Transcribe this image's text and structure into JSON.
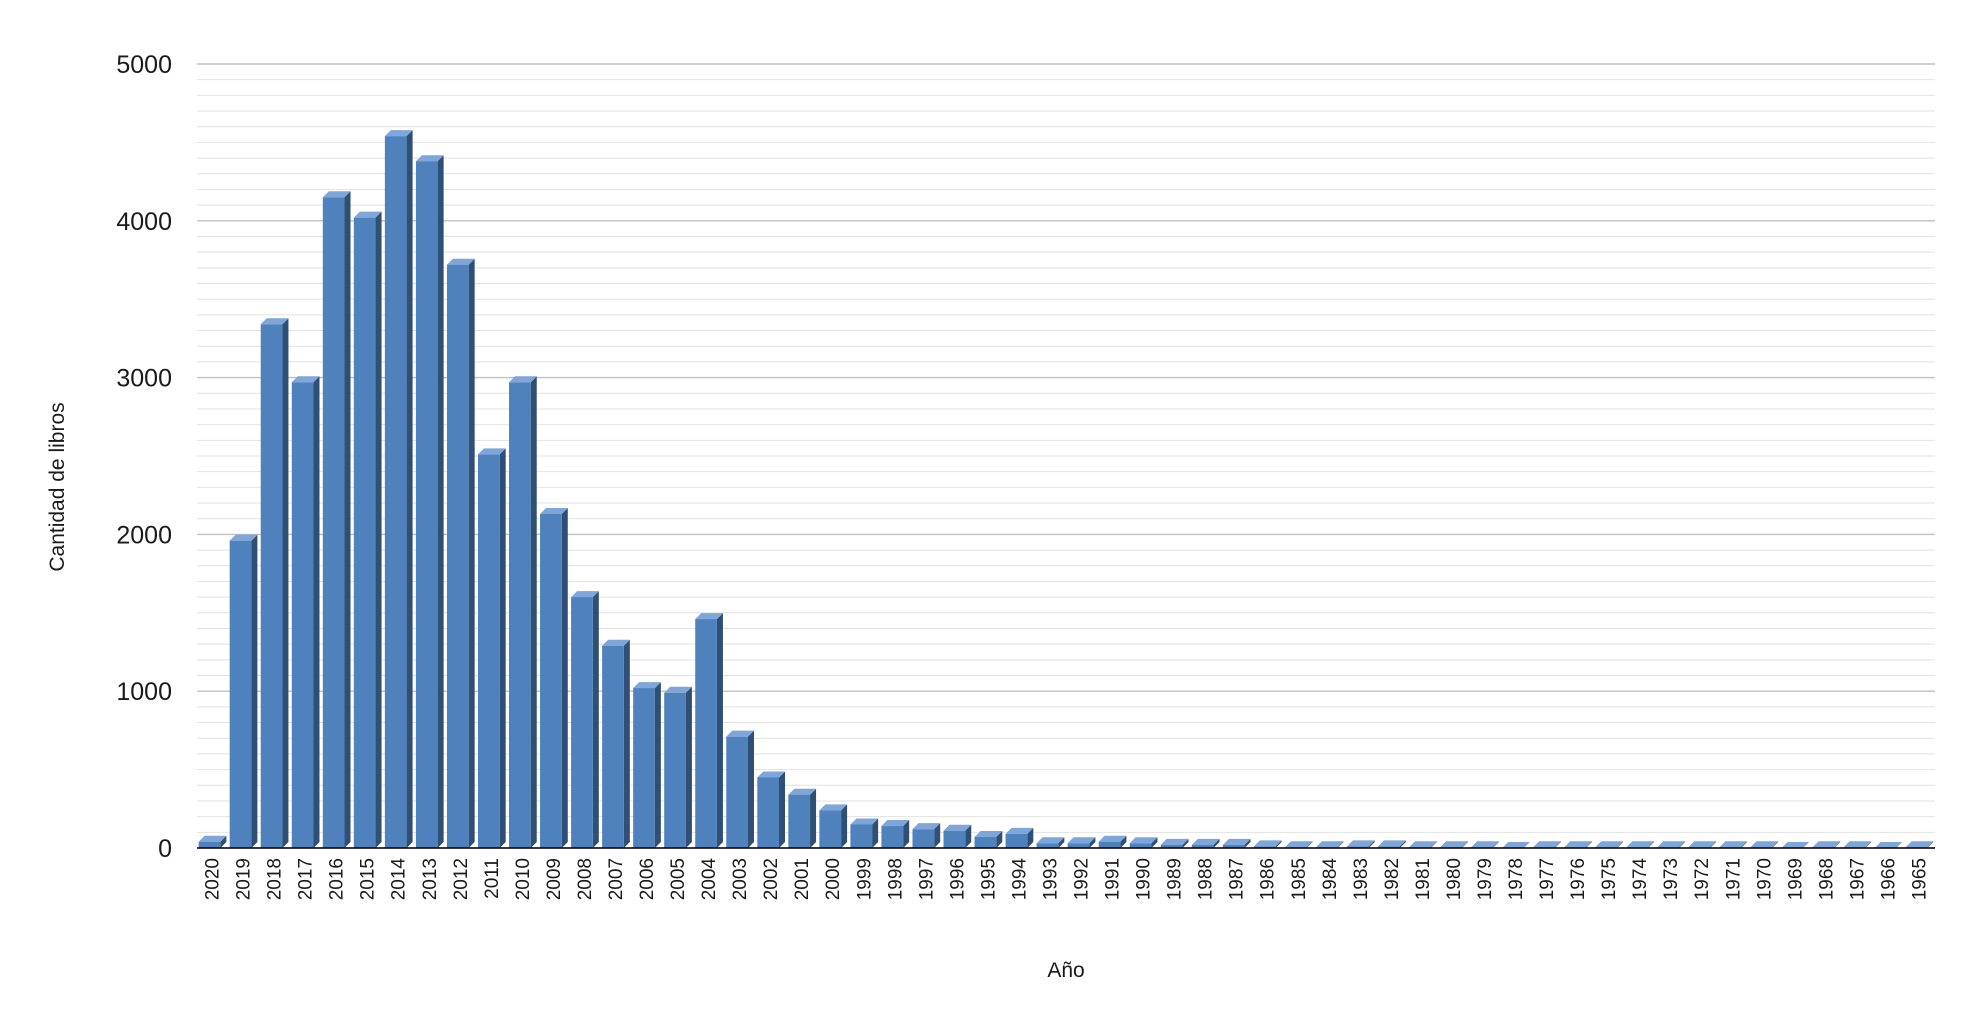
{
  "chart_data": {
    "type": "bar",
    "style": "3d-column",
    "title": "",
    "xlabel": "Año",
    "ylabel": "Cantidad de libros",
    "ylim": [
      0,
      5000
    ],
    "yticks": [
      "0",
      "1000",
      "2000",
      "3000",
      "4000",
      "5000"
    ],
    "grid": true,
    "legend": "none",
    "colors": {
      "bar_front": "#4f81bd",
      "bar_side": "#2f4f75",
      "bar_top": "#7ea6d8",
      "grid_major": "#c0c0c0",
      "grid_minor": "#e2e2e2",
      "baseline": "#000000"
    },
    "categories": [
      "2020",
      "2019",
      "2018",
      "2017",
      "2016",
      "2015",
      "2014",
      "2013",
      "2012",
      "2011",
      "2010",
      "2009",
      "2008",
      "2007",
      "2006",
      "2005",
      "2004",
      "2003",
      "2002",
      "2001",
      "2000",
      "1999",
      "1998",
      "1997",
      "1996",
      "1995",
      "1994",
      "1993",
      "1992",
      "1991",
      "1990",
      "1989",
      "1988",
      "1987",
      "1986",
      "1985",
      "1984",
      "1983",
      "1982",
      "1981",
      "1980",
      "1979",
      "1978",
      "1977",
      "1976",
      "1975",
      "1974",
      "1973",
      "1972",
      "1971",
      "1970",
      "1969",
      "1968",
      "1967",
      "1966",
      "1965"
    ],
    "values": [
      40,
      1960,
      3340,
      2970,
      4150,
      4020,
      4540,
      4380,
      3720,
      2510,
      2970,
      2130,
      1600,
      1290,
      1020,
      990,
      1460,
      710,
      450,
      340,
      240,
      150,
      140,
      120,
      110,
      70,
      90,
      30,
      30,
      40,
      30,
      20,
      20,
      20,
      10,
      5,
      5,
      10,
      10,
      5,
      5,
      5,
      0,
      5,
      5,
      5,
      5,
      5,
      5,
      5,
      5,
      0,
      5,
      5,
      0,
      5
    ]
  }
}
